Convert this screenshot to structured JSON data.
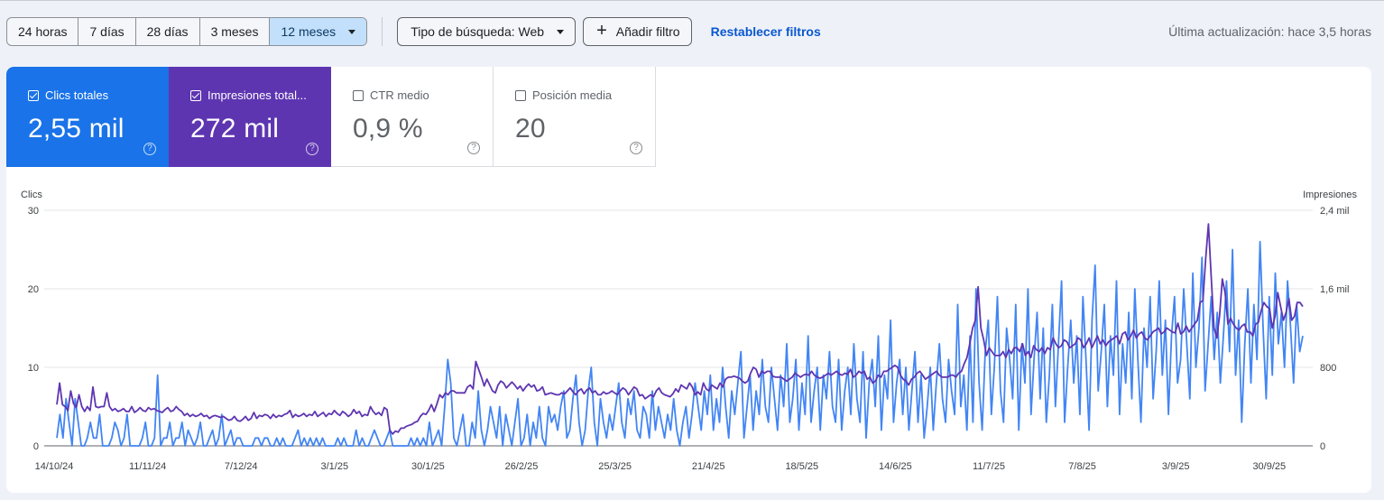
{
  "toolbar": {
    "ranges": [
      "24 horas",
      "7 días",
      "28 días",
      "3 meses",
      "12 meses"
    ],
    "selected_range": "12 meses",
    "search_type": "Tipo de búsqueda: Web",
    "add_filter": "Añadir filtro",
    "reset_filters": "Restablecer filtros",
    "last_update": "Última actualización: hace 3,5 horas"
  },
  "metrics": [
    {
      "label": "Clics totales",
      "value": "2,55 mil",
      "checked": true,
      "color": "#1a73e8"
    },
    {
      "label": "Impresiones total...",
      "value": "272 mil",
      "checked": true,
      "color": "#5e35b1"
    },
    {
      "label": "CTR medio",
      "value": "0,9 %",
      "checked": false,
      "color": "#ffffff"
    },
    {
      "label": "Posición media",
      "value": "20",
      "checked": false,
      "color": "#ffffff"
    }
  ],
  "help_glyph": "?",
  "chart_data": {
    "type": "line",
    "y_left_label": "Clics",
    "y_right_label": "Impresiones",
    "y_left_ticks": [
      "0",
      "10",
      "20",
      "30"
    ],
    "y_right_ticks": [
      "0",
      "800",
      "1,6 mil",
      "2,4 mil"
    ],
    "ylim_left": [
      0,
      30
    ],
    "ylim_right": [
      0,
      2400
    ],
    "grid": true,
    "x_tick_labels": [
      "14/10/24",
      "11/11/24",
      "7/12/24",
      "3/1/25",
      "30/1/25",
      "26/2/25",
      "25/3/25",
      "21/4/25",
      "18/5/25",
      "14/6/25",
      "11/7/25",
      "7/8/25",
      "3/9/25",
      "30/9/25"
    ],
    "series": [
      {
        "name": "Clics totales",
        "axis": "left",
        "color": "#4285f4",
        "values": [
          1,
          4,
          1,
          6,
          3,
          0,
          6,
          3,
          0,
          0,
          1,
          3,
          1,
          1,
          4,
          0,
          0,
          0,
          1,
          3,
          2,
          0,
          1,
          4,
          0,
          0,
          0,
          0,
          1,
          3,
          0,
          0,
          1,
          9,
          0,
          1,
          1,
          3,
          0,
          1,
          1,
          3,
          0,
          2,
          1,
          0,
          1,
          3,
          0,
          0,
          1,
          2,
          0,
          1,
          4,
          0,
          1,
          2,
          0,
          1,
          1,
          0,
          0,
          0,
          0,
          1,
          1,
          0,
          1,
          1,
          0,
          0,
          1,
          0,
          1,
          0,
          0,
          0,
          1,
          2,
          0,
          1,
          0,
          1,
          0,
          1,
          0,
          1,
          0,
          0,
          0,
          0,
          1,
          0,
          1,
          0,
          0,
          0,
          2,
          0,
          1,
          0,
          0,
          1,
          2,
          1,
          0,
          0,
          1,
          2,
          0,
          0,
          0,
          0,
          0,
          0,
          1,
          0,
          1,
          0,
          1,
          0,
          3,
          0,
          1,
          2,
          0,
          5,
          11,
          8,
          1,
          0,
          2,
          4,
          0,
          0,
          3,
          1,
          7,
          2,
          0,
          2,
          5,
          3,
          1,
          5,
          0,
          4,
          2,
          0,
          3,
          6,
          0,
          1,
          4,
          0,
          3,
          1,
          5,
          1,
          0,
          5,
          3,
          4,
          2,
          5,
          7,
          1,
          2,
          6,
          9,
          3,
          0,
          2,
          7,
          10,
          3,
          0,
          6,
          3,
          1,
          4,
          2,
          5,
          8,
          3,
          1,
          6,
          4,
          7,
          2,
          1,
          5,
          4,
          1,
          7,
          2,
          5,
          3,
          1,
          4,
          2,
          6,
          2,
          0,
          3,
          5,
          1,
          4,
          8,
          5,
          2,
          7,
          4,
          9,
          2,
          6,
          3,
          10,
          5,
          1,
          7,
          4,
          8,
          12,
          1,
          5,
          9,
          2,
          7,
          4,
          11,
          5,
          3,
          10,
          6,
          2,
          9,
          5,
          13,
          3,
          6,
          11,
          2,
          8,
          4,
          14,
          3,
          7,
          10,
          2,
          9,
          6,
          12,
          5,
          3,
          11,
          2,
          7,
          10,
          4,
          13,
          6,
          3,
          12,
          1,
          8,
          11,
          5,
          14,
          2,
          9,
          6,
          16,
          3,
          8,
          11,
          4,
          10,
          2,
          7,
          12,
          3,
          9,
          1,
          5,
          10,
          2,
          8,
          13,
          6,
          3,
          11,
          7,
          4,
          18,
          5,
          9,
          2,
          14,
          3,
          20,
          8,
          2,
          12,
          16,
          4,
          10,
          19,
          7,
          3,
          15,
          11,
          6,
          18,
          2,
          13,
          8,
          20,
          4,
          11,
          17,
          6,
          15,
          3,
          9,
          18,
          5,
          13,
          21,
          3,
          10,
          16,
          8,
          14,
          4,
          19,
          11,
          2,
          16,
          23,
          7,
          12,
          18,
          5,
          14,
          9,
          21,
          4,
          13,
          8,
          17,
          6,
          20,
          11,
          3,
          15,
          10,
          19,
          6,
          12,
          21,
          9,
          16,
          4,
          14,
          19,
          8,
          11,
          20,
          13,
          6,
          22,
          10,
          15,
          24,
          7,
          13,
          19,
          11,
          17,
          8,
          14,
          21,
          12,
          25,
          9,
          16,
          3,
          13,
          20,
          8,
          18,
          11,
          26,
          15,
          6,
          19,
          9,
          22,
          13,
          17,
          10,
          21,
          15,
          8,
          18,
          12,
          14
        ]
      },
      {
        "name": "Impresiones totales",
        "axis": "right",
        "color": "#5e35b1",
        "values": [
          420,
          640,
          420,
          400,
          360,
          560,
          430,
          390,
          520,
          400,
          350,
          400,
          360,
          600,
          400,
          390,
          400,
          400,
          540,
          400,
          360,
          380,
          350,
          360,
          380,
          350,
          350,
          400,
          340,
          360,
          390,
          360,
          350,
          390,
          370,
          380,
          360,
          350,
          340,
          370,
          390,
          350,
          360,
          400,
          370,
          350,
          310,
          330,
          300,
          320,
          300,
          310,
          330,
          300,
          310,
          280,
          300,
          310,
          300,
          290,
          300,
          280,
          260,
          270,
          300,
          260,
          250,
          270,
          300,
          260,
          280,
          340,
          280,
          310,
          300,
          320,
          310,
          280,
          320,
          290,
          310,
          300,
          320,
          330,
          360,
          290,
          320,
          300,
          310,
          330,
          300,
          320,
          310,
          350,
          300,
          320,
          340,
          300,
          330,
          320,
          360,
          330,
          310,
          350,
          330,
          300,
          320,
          370,
          330,
          350,
          300,
          320,
          310,
          400,
          350,
          320,
          340,
          310,
          390,
          370,
          160,
          120,
          150,
          140,
          180,
          180,
          200,
          210,
          220,
          240,
          250,
          300,
          330,
          320,
          360,
          420,
          350,
          430,
          520,
          490,
          540,
          520,
          560,
          560,
          540,
          540,
          540,
          540,
          600,
          620,
          580,
          860,
          780,
          700,
          610,
          680,
          620,
          560,
          540,
          620,
          660,
          640,
          590,
          620,
          650,
          620,
          580,
          610,
          560,
          600,
          630,
          600,
          620,
          560,
          570,
          600,
          520,
          530,
          540,
          530,
          520,
          520,
          540,
          530,
          560,
          590,
          550,
          520,
          560,
          580,
          530,
          570,
          590,
          540,
          560,
          520,
          520,
          550,
          530,
          540,
          560,
          540,
          520,
          560,
          590,
          570,
          520,
          560,
          600,
          580,
          510,
          520,
          480,
          500,
          520,
          500,
          560,
          590,
          540,
          520,
          510,
          500,
          530,
          580,
          550,
          620,
          600,
          580,
          640,
          600,
          520,
          550,
          520,
          640,
          580,
          560,
          620,
          600,
          580,
          640,
          600,
          680,
          700,
          700,
          710,
          700,
          690,
          660,
          640,
          660,
          740,
          800,
          780,
          700,
          760,
          740,
          760,
          760,
          710,
          700,
          700,
          700,
          680,
          660,
          680,
          700,
          740,
          720,
          700,
          720,
          730,
          720,
          760,
          720,
          700,
          690,
          700,
          720,
          740,
          720,
          740,
          760,
          730,
          720,
          740,
          730,
          780,
          700,
          720,
          760,
          740,
          760,
          680,
          700,
          640,
          660,
          720,
          700,
          760,
          760,
          780,
          800,
          820,
          800,
          720,
          680,
          660,
          620,
          680,
          700,
          740,
          760,
          720,
          680,
          700,
          720,
          740,
          760,
          720,
          700,
          700,
          700,
          720,
          720,
          700,
          740,
          760,
          840,
          900,
          1040,
          1200,
          1280,
          1620,
          1200,
          1080,
          920,
          1000,
          960,
          920,
          920,
          920,
          960,
          900,
          980,
          940,
          1000,
          1000,
          960,
          1040,
          920,
          960,
          900,
          1020,
          980,
          960,
          1000,
          940,
          1000,
          980,
          1100,
          1040,
          1000,
          1020,
          1080,
          1060,
          1000,
          1020,
          1040,
          1100,
          1080,
          1000,
          1040,
          1100,
          1000,
          1060,
          1120,
          1040,
          1080,
          1020,
          1060,
          1080,
          1100,
          1120,
          1040,
          1140,
          1160,
          1080,
          1120,
          1180,
          1100,
          1140,
          1160,
          1100,
          1080,
          1120,
          1160,
          1180,
          1200,
          1140,
          1160,
          1200,
          1180,
          1160,
          1150,
          1250,
          1140,
          1160,
          1220,
          1160,
          1200,
          1240,
          1280,
          1460,
          1480,
          1900,
          2260,
          1720,
          1200,
          1100,
          1320,
          1700,
          1560,
          1240,
          1300,
          1240,
          1200,
          1180,
          1220,
          1240,
          1160,
          1160,
          1120,
          1240,
          1260,
          1380,
          1460,
          1420,
          1400,
          1200,
          1320,
          1560,
          1420,
          1280,
          1360,
          1500,
          1280,
          1320,
          1460,
          1460,
          1420
        ]
      }
    ]
  }
}
